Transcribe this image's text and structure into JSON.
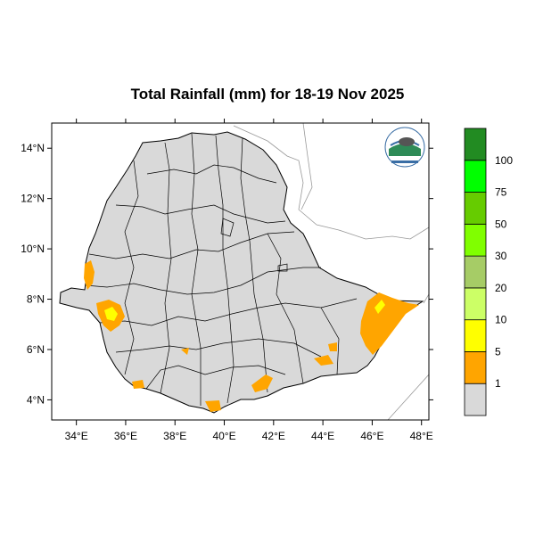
{
  "title": "Total Rainfall (mm) for 18-19 Nov 2025",
  "lon_ticks": [
    "34°E",
    "36°E",
    "38°E",
    "40°E",
    "42°E",
    "44°E",
    "46°E",
    "48°E"
  ],
  "lat_ticks": [
    "14°N",
    "12°N",
    "10°N",
    "8°N",
    "6°N",
    "4°N"
  ],
  "extent": {
    "lon": [
      33,
      48.3
    ],
    "lat": [
      3.2,
      15
    ]
  },
  "legend": {
    "labels": [
      "1",
      "5",
      "10",
      "20",
      "30",
      "50",
      "75",
      "100"
    ],
    "colors": [
      "#d9d9d9",
      "#ffa500",
      "#ffff00",
      "#ccff66",
      "#a6cc66",
      "#80ff00",
      "#66cc00",
      "#00ff00",
      "#228b22"
    ]
  },
  "colors": {
    "land": "#d9d9d9",
    "rain_1_5": "#ffa500",
    "rain_5_10": "#ffff00",
    "border": "#000000",
    "neighbors": "#999999"
  },
  "logo_icon": "meteorology-agency-logo"
}
